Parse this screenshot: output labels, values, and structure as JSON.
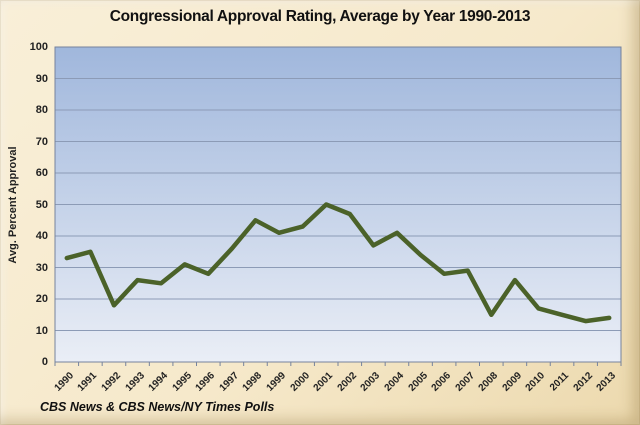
{
  "chart_data": {
    "type": "line",
    "title": "Congressional Approval Rating, Average by Year 1990-2013",
    "ylabel": "Avg. Percent Approval",
    "xlabel": "",
    "source": "CBS News & CBS News/NY Times Polls",
    "categories": [
      "1990",
      "1991",
      "1992",
      "1993",
      "1994",
      "1995",
      "1996",
      "1997",
      "1998",
      "1999",
      "2000",
      "2001",
      "2002",
      "2003",
      "2004",
      "2005",
      "2006",
      "2007",
      "2008",
      "2009",
      "2010",
      "2011",
      "2012",
      "2013"
    ],
    "series": [
      {
        "name": "Avg. Percent Approval",
        "values": [
          33,
          35,
          18,
          26,
          25,
          31,
          28,
          36,
          45,
          41,
          43,
          50,
          47,
          37,
          41,
          34,
          28,
          29,
          15,
          26,
          17,
          15,
          13,
          14
        ]
      }
    ],
    "ylim": [
      0,
      100
    ],
    "ytick_step": 10,
    "grid": "horizontal",
    "legend": "none",
    "colors": {
      "line": "#4b6229",
      "plot_bg_top": "#a0b7dc",
      "plot_bg_bottom": "#eaeef6",
      "page_bg": "#f6e9cb",
      "gridline": "#8c9bb6",
      "axis": "#76839d",
      "text": "#1a1a1a"
    }
  }
}
